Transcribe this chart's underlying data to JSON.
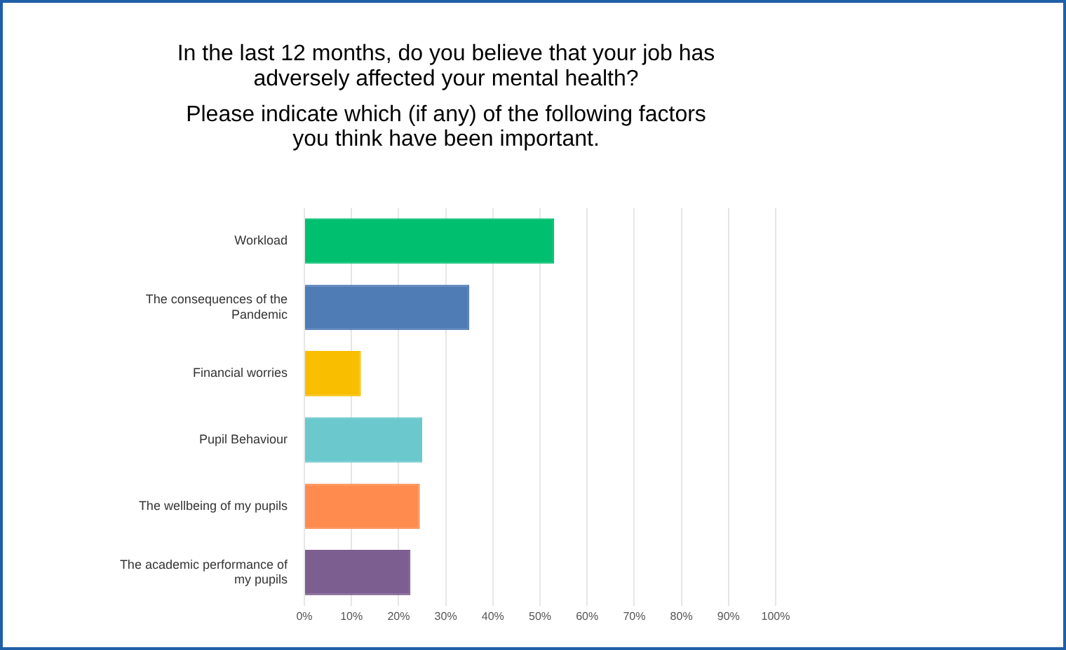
{
  "chart_data": {
    "type": "bar",
    "orientation": "horizontal",
    "title": "In the last 12 months, do you believe that your job has adversely affected your mental health?",
    "subtitle": "Please indicate which (if any) of the following factors you think have been important.",
    "categories": [
      "Workload",
      "The consequences of the Pandemic",
      "Financial worries",
      "Pupil Behaviour",
      "The wellbeing of my pupils",
      "The academic performance of my pupils"
    ],
    "values": [
      53,
      35,
      12,
      25,
      24.5,
      22.5
    ],
    "colors": [
      "#00bf6f",
      "#507cb6",
      "#f9be00",
      "#6bc8cd",
      "#ff8b4f",
      "#7d5e90"
    ],
    "xlim": [
      0,
      100
    ],
    "xticks": [
      {
        "value": 0,
        "label": "0%"
      },
      {
        "value": 10,
        "label": "10%"
      },
      {
        "value": 20,
        "label": "20%"
      },
      {
        "value": 30,
        "label": "30%"
      },
      {
        "value": 40,
        "label": "40%"
      },
      {
        "value": 50,
        "label": "50%"
      },
      {
        "value": 60,
        "label": "60%"
      },
      {
        "value": 70,
        "label": "70%"
      },
      {
        "value": 80,
        "label": "80%"
      },
      {
        "value": 90,
        "label": "90%"
      },
      {
        "value": 100,
        "label": "100%"
      }
    ],
    "grid": "x",
    "legend": false
  }
}
